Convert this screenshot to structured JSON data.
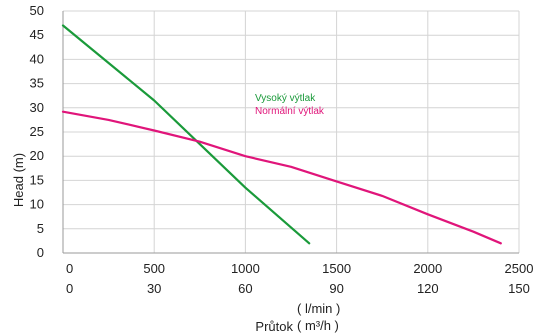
{
  "chart_data": {
    "type": "line",
    "ylabel": "Head (m)",
    "xlabel": "Průtok",
    "x_units": [
      "( l/min )",
      "( m³/h )"
    ],
    "ylim": [
      0,
      50
    ],
    "xlim": [
      0,
      2500
    ],
    "y_ticks": [
      0,
      5,
      10,
      15,
      20,
      25,
      30,
      35,
      40,
      45,
      50
    ],
    "x_ticks_lmin": [
      0,
      500,
      1000,
      1500,
      2000,
      2500
    ],
    "x_ticks_m3h": [
      0,
      30,
      60,
      90,
      120,
      150
    ],
    "grid": true,
    "legend_position": "center",
    "series": [
      {
        "name": "Vysoký výtlak",
        "color": "#1a9a3a",
        "x": [
          0,
          500,
          1000,
          1350
        ],
        "y": [
          47,
          31.5,
          13.5,
          2
        ]
      },
      {
        "name": "Normální výtlak",
        "color": "#e0157a",
        "x": [
          0,
          250,
          500,
          750,
          1000,
          1250,
          1500,
          1750,
          2000,
          2250,
          2400
        ],
        "y": [
          29.2,
          27.5,
          25.3,
          23,
          20,
          17.8,
          14.8,
          11.8,
          8,
          4.4,
          2
        ]
      }
    ]
  }
}
